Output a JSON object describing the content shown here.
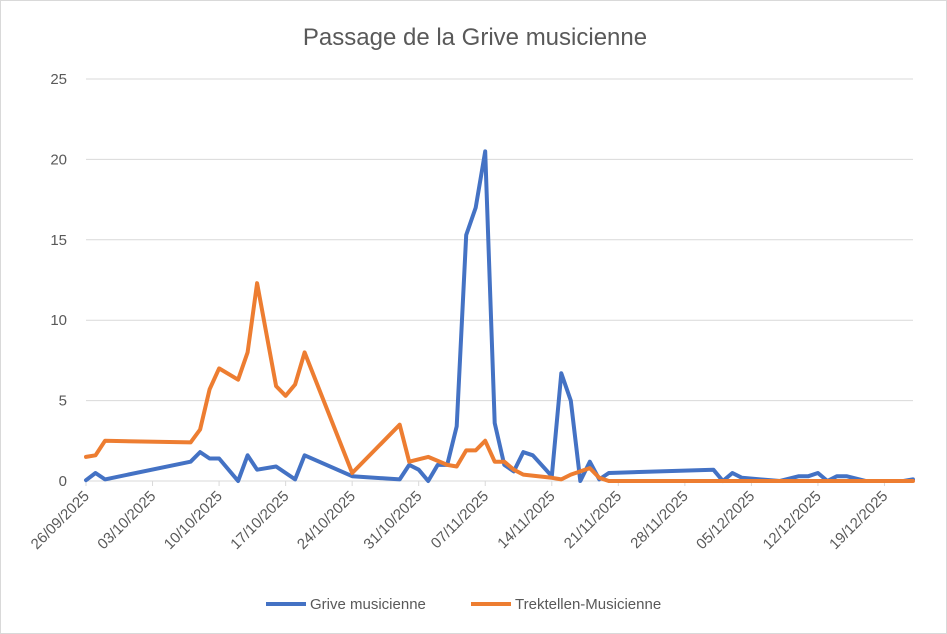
{
  "chart_data": {
    "type": "line",
    "title": "Passage de la Grive musicienne",
    "xlabel": "",
    "ylabel": "",
    "ylim": [
      0,
      25
    ],
    "y_ticks": [
      0,
      5,
      10,
      15,
      20,
      25
    ],
    "x_range": [
      "26/09/2025",
      "22/12/2025"
    ],
    "x_tick_labels": [
      "26/09/2025",
      "03/10/2025",
      "10/10/2025",
      "17/10/2025",
      "24/10/2025",
      "31/10/2025",
      "07/11/2025",
      "14/11/2025",
      "21/11/2025",
      "28/11/2025",
      "05/12/2025",
      "12/12/2025",
      "19/12/2025"
    ],
    "grid": true,
    "legend_position": "bottom",
    "series": [
      {
        "name": "Grive musicienne",
        "color": "#4472c4",
        "points": [
          [
            "26/09/2025",
            0.05
          ],
          [
            "27/09/2025",
            0.5
          ],
          [
            "28/09/2025",
            0.1
          ],
          [
            "07/10/2025",
            1.2
          ],
          [
            "08/10/2025",
            1.8
          ],
          [
            "09/10/2025",
            1.4
          ],
          [
            "10/10/2025",
            1.4
          ],
          [
            "12/10/2025",
            0.0
          ],
          [
            "13/10/2025",
            1.6
          ],
          [
            "14/10/2025",
            0.7
          ],
          [
            "16/10/2025",
            0.9
          ],
          [
            "18/10/2025",
            0.1
          ],
          [
            "19/10/2025",
            1.6
          ],
          [
            "24/10/2025",
            0.3
          ],
          [
            "29/10/2025",
            0.1
          ],
          [
            "30/10/2025",
            1.0
          ],
          [
            "31/10/2025",
            0.7
          ],
          [
            "01/11/2025",
            0.0
          ],
          [
            "02/11/2025",
            1.0
          ],
          [
            "03/11/2025",
            1.0
          ],
          [
            "04/11/2025",
            3.4
          ],
          [
            "05/11/2025",
            15.3
          ],
          [
            "06/11/2025",
            17.0
          ],
          [
            "07/11/2025",
            20.5
          ],
          [
            "08/11/2025",
            3.6
          ],
          [
            "09/11/2025",
            1.0
          ],
          [
            "10/11/2025",
            0.6
          ],
          [
            "11/11/2025",
            1.8
          ],
          [
            "12/11/2025",
            1.6
          ],
          [
            "14/11/2025",
            0.3
          ],
          [
            "15/11/2025",
            6.7
          ],
          [
            "16/11/2025",
            5.0
          ],
          [
            "17/11/2025",
            0.0
          ],
          [
            "18/11/2025",
            1.2
          ],
          [
            "19/11/2025",
            0.1
          ],
          [
            "20/11/2025",
            0.5
          ],
          [
            "01/12/2025",
            0.7
          ],
          [
            "02/12/2025",
            0.0
          ],
          [
            "03/12/2025",
            0.5
          ],
          [
            "04/12/2025",
            0.2
          ],
          [
            "08/12/2025",
            0.0
          ],
          [
            "10/12/2025",
            0.3
          ],
          [
            "11/12/2025",
            0.3
          ],
          [
            "12/12/2025",
            0.5
          ],
          [
            "13/12/2025",
            0.0
          ],
          [
            "14/12/2025",
            0.3
          ],
          [
            "15/12/2025",
            0.3
          ],
          [
            "17/12/2025",
            0.0
          ],
          [
            "21/12/2025",
            0.0
          ],
          [
            "22/12/2025",
            0.1
          ]
        ]
      },
      {
        "name": "Trektellen-Musicienne",
        "color": "#ed7d31",
        "points": [
          [
            "26/09/2025",
            1.5
          ],
          [
            "27/09/2025",
            1.6
          ],
          [
            "28/09/2025",
            2.5
          ],
          [
            "07/10/2025",
            2.4
          ],
          [
            "08/10/2025",
            3.2
          ],
          [
            "09/10/2025",
            5.7
          ],
          [
            "10/10/2025",
            7.0
          ],
          [
            "12/10/2025",
            6.3
          ],
          [
            "13/10/2025",
            8.0
          ],
          [
            "14/10/2025",
            12.3
          ],
          [
            "16/10/2025",
            5.9
          ],
          [
            "17/10/2025",
            5.3
          ],
          [
            "18/10/2025",
            6.0
          ],
          [
            "19/10/2025",
            8.0
          ],
          [
            "24/10/2025",
            0.5
          ],
          [
            "29/10/2025",
            3.5
          ],
          [
            "30/10/2025",
            1.2
          ],
          [
            "01/11/2025",
            1.5
          ],
          [
            "03/11/2025",
            1.0
          ],
          [
            "04/11/2025",
            0.9
          ],
          [
            "05/11/2025",
            1.9
          ],
          [
            "06/11/2025",
            1.9
          ],
          [
            "07/11/2025",
            2.5
          ],
          [
            "08/11/2025",
            1.2
          ],
          [
            "09/11/2025",
            1.2
          ],
          [
            "10/11/2025",
            0.7
          ],
          [
            "11/11/2025",
            0.4
          ],
          [
            "14/11/2025",
            0.2
          ],
          [
            "15/11/2025",
            0.1
          ],
          [
            "16/11/2025",
            0.4
          ],
          [
            "17/11/2025",
            0.6
          ],
          [
            "18/11/2025",
            0.8
          ],
          [
            "19/11/2025",
            0.2
          ],
          [
            "20/11/2025",
            0.0
          ],
          [
            "22/12/2025",
            0.0
          ]
        ]
      }
    ]
  }
}
